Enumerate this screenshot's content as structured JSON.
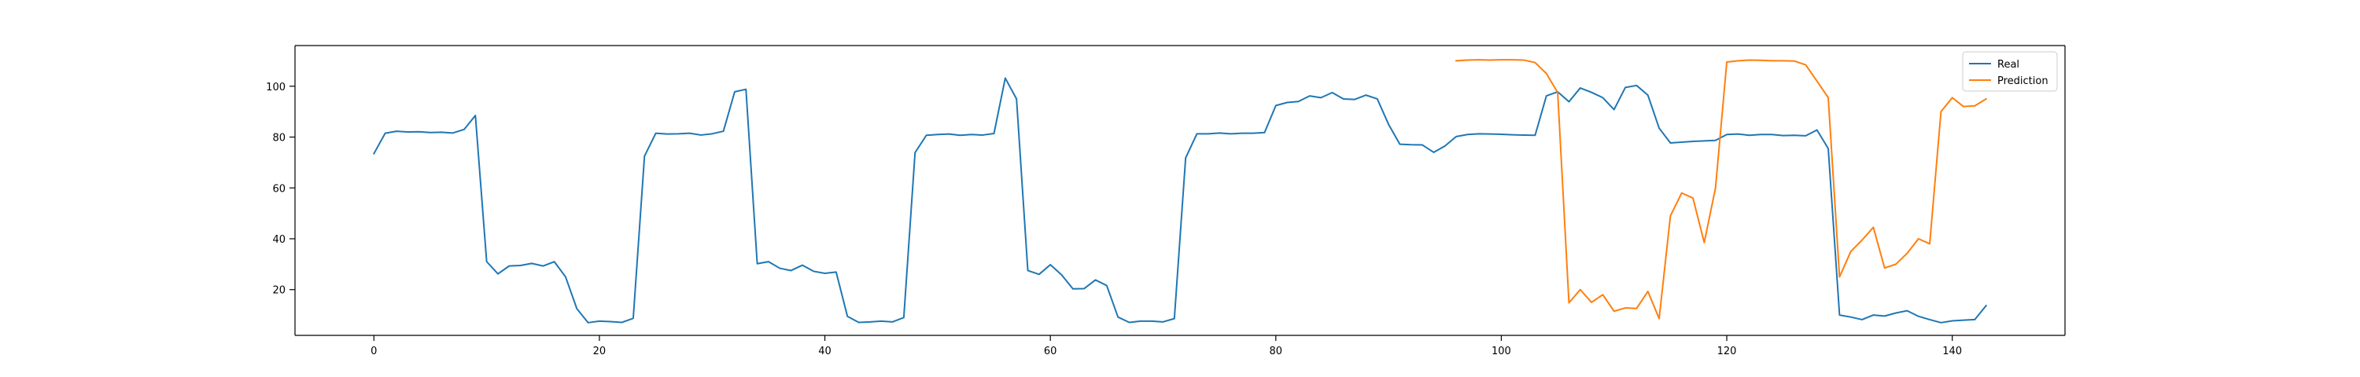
{
  "chart_data": {
    "type": "line",
    "title": "",
    "xlabel": "",
    "ylabel": "",
    "xlim": [
      -7,
      150
    ],
    "ylim": [
      2,
      116
    ],
    "xticks": [
      0,
      20,
      40,
      60,
      80,
      100,
      120,
      140
    ],
    "yticks": [
      20,
      40,
      60,
      80,
      100
    ],
    "grid": false,
    "legend_position": "top-right",
    "series": [
      {
        "name": "Real",
        "color": "#1f77b4",
        "x": [
          0,
          1,
          2,
          3,
          4,
          5,
          6,
          7,
          8,
          9,
          10,
          11,
          12,
          13,
          14,
          15,
          16,
          17,
          18,
          19,
          20,
          21,
          22,
          23,
          24,
          25,
          26,
          27,
          28,
          29,
          30,
          31,
          32,
          33,
          34,
          35,
          36,
          37,
          38,
          39,
          40,
          41,
          42,
          43,
          44,
          45,
          46,
          47,
          48,
          49,
          50,
          51,
          52,
          53,
          54,
          55,
          56,
          57,
          58,
          59,
          60,
          61,
          62,
          63,
          64,
          65,
          66,
          67,
          68,
          69,
          70,
          71,
          72,
          73,
          74,
          75,
          76,
          77,
          78,
          79,
          80,
          81,
          82,
          83,
          84,
          85,
          86,
          87,
          88,
          89,
          90,
          91,
          92,
          93,
          94,
          95,
          96,
          97,
          98,
          99,
          100,
          101,
          102,
          103,
          104,
          105,
          106,
          107,
          108,
          109,
          110,
          111,
          112,
          113,
          114,
          115,
          116,
          117,
          118,
          119,
          120,
          121,
          122,
          123,
          124,
          125,
          126,
          127,
          128,
          129,
          130,
          131,
          132,
          133,
          134,
          135,
          136,
          137,
          138,
          139,
          140,
          141,
          142,
          143
        ],
        "y": [
          73.5,
          81.5,
          82.3,
          82,
          82.1,
          81.8,
          81.9,
          81.6,
          83,
          88.5,
          31,
          26.2,
          29.3,
          29.5,
          30.3,
          29.3,
          31,
          25,
          12.5,
          7,
          7.6,
          7.4,
          7.1,
          8.7,
          72.5,
          81.5,
          81.2,
          81.3,
          81.5,
          80.8,
          81.3,
          82.3,
          97.8,
          98.8,
          30.2,
          31,
          28.4,
          27.5,
          29.6,
          27.2,
          26.4,
          26.9,
          9.5,
          7.1,
          7.3,
          7.6,
          7.3,
          9,
          73.9,
          80.7,
          81,
          81.2,
          80.7,
          81,
          80.8,
          81.4,
          103.2,
          95,
          27.5,
          26,
          29.8,
          25.8,
          20.3,
          20.4,
          23.8,
          21.6,
          9.2,
          7.1,
          7.6,
          7.6,
          7.3,
          8.6,
          71.8,
          81.3,
          81.3,
          81.6,
          81.3,
          81.5,
          81.5,
          81.8,
          92.4,
          93.6,
          94,
          96.2,
          95.5,
          97.5,
          95,
          94.8,
          96.5,
          95,
          85,
          77.2,
          77,
          76.9,
          74,
          76.5,
          80.2,
          81,
          81.3,
          81.2,
          81.1,
          80.9,
          80.8,
          80.7,
          96.2,
          97.8,
          93.9,
          99.3,
          97.6,
          95.5,
          90.8,
          99.5,
          100.3,
          96.5,
          83.5,
          77.7,
          78,
          78.3,
          78.5,
          78.7,
          81,
          81.2,
          80.7,
          81,
          81,
          80.6,
          80.7,
          80.5,
          82.8,
          75.5,
          10,
          9.2,
          8.2,
          10,
          9.6,
          10.8,
          11.7,
          9.5,
          8.2,
          7,
          7.7,
          8,
          8.2,
          13.7
        ]
      },
      {
        "name": "Prediction",
        "color": "#ff7f0e",
        "x": [
          96,
          97,
          98,
          99,
          100,
          101,
          102,
          103,
          104,
          105,
          106,
          107,
          108,
          109,
          110,
          111,
          112,
          113,
          114,
          115,
          116,
          117,
          118,
          119,
          120,
          121,
          122,
          123,
          124,
          125,
          126,
          127,
          128,
          129,
          130,
          131,
          132,
          133,
          134,
          135,
          136,
          137,
          138,
          139,
          140,
          141,
          142,
          143
        ],
        "y": [
          110,
          110.3,
          110.4,
          110.3,
          110.4,
          110.4,
          110.3,
          109.3,
          105,
          97.5,
          14.8,
          20,
          15,
          18,
          11.5,
          12.8,
          12.6,
          19.3,
          8.6,
          49,
          58,
          56,
          38.5,
          60,
          109.5,
          110,
          110.3,
          110.2,
          110,
          110,
          109.9,
          108.4,
          102,
          95.5,
          25,
          35,
          39.5,
          44.5,
          28.5,
          30,
          34.3,
          40,
          38,
          90,
          95.5,
          92,
          92.3,
          95
        ]
      }
    ]
  }
}
